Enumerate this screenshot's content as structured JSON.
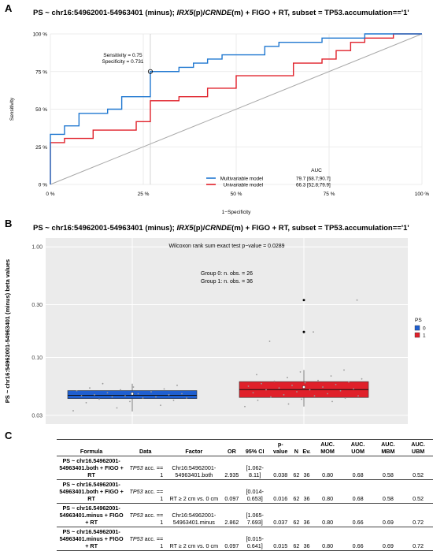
{
  "panels": {
    "a": {
      "letter": "A",
      "title": "PS ~ chr16:54962001-54963401 (minus); IRX5(p)/CRNDE(m) + FIGO + RT, subset = TP53.accumulation=='1'",
      "annotation": [
        "Sensitivity = 0.75",
        "Specificity = 0.731"
      ],
      "legend_header": "AUC"
    },
    "b": {
      "letter": "B",
      "title": "PS ~ chr16:54962001-54963401 (minus); IRX5(p)/CRNDE(m) + FIGO + RT, subset = TP53.accumulation=='1'",
      "annotations": [
        "Wilcoxon rank sum exact test p−value = 0.0289",
        "Group 0: n. obs. = 26",
        "Group 1: n. obs. = 36"
      ]
    },
    "c": {
      "letter": "C"
    }
  },
  "chart_data": [
    {
      "type": "line",
      "xlabel": "1−Specificity",
      "ylabel": "Sensitivity",
      "xlim": [
        0,
        1
      ],
      "ylim": [
        0,
        1
      ],
      "x_ticks": [
        "0 %",
        "25 %",
        "50 %",
        "75 %",
        "100 %"
      ],
      "y_ticks": [
        "0 %",
        "25 %",
        "50 %",
        "75 %",
        "100 %"
      ],
      "grid": true,
      "legend_position": "bottom-right",
      "series": [
        {
          "name": "Multivariable model",
          "auc": "79.7 [68.7;90.7]",
          "color": "#1f77d0",
          "x": [
            0,
            0,
            0.038,
            0.038,
            0.077,
            0.077,
            0.154,
            0.154,
            0.192,
            0.192,
            0.231,
            0.231,
            0.269,
            0.269,
            0.346,
            0.346,
            0.385,
            0.385,
            0.423,
            0.423,
            0.462,
            0.462,
            0.5,
            0.5,
            0.577,
            0.577,
            0.615,
            0.615,
            0.731,
            0.731,
            0.846,
            0.846,
            1
          ],
          "y": [
            0,
            0.333,
            0.333,
            0.389,
            0.389,
            0.472,
            0.472,
            0.5,
            0.5,
            0.583,
            0.583,
            0.583,
            0.583,
            0.75,
            0.75,
            0.778,
            0.778,
            0.806,
            0.806,
            0.833,
            0.833,
            0.861,
            0.861,
            0.861,
            0.861,
            0.917,
            0.917,
            0.944,
            0.944,
            0.972,
            0.972,
            1,
            1
          ]
        },
        {
          "name": "Univariable model",
          "auc": "66.3 [52.8;79.9]",
          "color": "#e0202a",
          "x": [
            0,
            0,
            0.038,
            0.038,
            0.115,
            0.115,
            0.231,
            0.231,
            0.269,
            0.269,
            0.346,
            0.346,
            0.423,
            0.423,
            0.5,
            0.5,
            0.577,
            0.577,
            0.654,
            0.654,
            0.731,
            0.731,
            0.769,
            0.769,
            0.808,
            0.808,
            0.846,
            0.846,
            0.923,
            0.923,
            1
          ],
          "y": [
            0,
            0.278,
            0.278,
            0.306,
            0.306,
            0.361,
            0.361,
            0.417,
            0.417,
            0.556,
            0.556,
            0.583,
            0.583,
            0.639,
            0.639,
            0.722,
            0.722,
            0.722,
            0.722,
            0.806,
            0.806,
            0.833,
            0.833,
            0.889,
            0.889,
            0.944,
            0.944,
            0.972,
            0.972,
            1,
            1
          ]
        }
      ],
      "reference_line": [
        [
          0,
          0
        ],
        [
          1,
          1
        ]
      ],
      "marked_point": {
        "specificity": 0.731,
        "sensitivity": 0.75
      }
    },
    {
      "type": "boxplot",
      "ylabel": "PS ~ chr16:54962001-54963401 (minus) beta values",
      "y_scale": "log",
      "ylim": [
        0.025,
        1.2
      ],
      "y_ticks": [
        1.0,
        0.3,
        0.1,
        0.03
      ],
      "y_tick_labels": [
        "1.00",
        "0.30",
        "0.10",
        "0.03"
      ],
      "grid": true,
      "legend_title": "PS",
      "legend_position": "right",
      "groups": [
        {
          "name": "0",
          "color": "#1f5fd0",
          "q1": 0.0425,
          "median": 0.0455,
          "q3": 0.0502,
          "whisker_low": 0.0325,
          "whisker_high": 0.058,
          "mean": 0.047,
          "points": [
            0.033,
            0.035,
            0.037,
            0.039,
            0.04,
            0.041,
            0.042,
            0.043,
            0.043,
            0.044,
            0.044,
            0.045,
            0.045,
            0.046,
            0.046,
            0.047,
            0.047,
            0.048,
            0.049,
            0.05,
            0.051,
            0.052,
            0.053,
            0.054,
            0.056,
            0.058
          ]
        },
        {
          "name": "1",
          "color": "#e0202a",
          "q1": 0.0435,
          "median": 0.0512,
          "q3": 0.0605,
          "whisker_low": 0.036,
          "whisker_high": 0.077,
          "mean": 0.054,
          "outliers": [
            0.17,
            0.33
          ],
          "points": [
            0.036,
            0.038,
            0.04,
            0.041,
            0.042,
            0.043,
            0.044,
            0.045,
            0.045,
            0.046,
            0.047,
            0.048,
            0.049,
            0.05,
            0.051,
            0.051,
            0.052,
            0.053,
            0.054,
            0.055,
            0.056,
            0.057,
            0.058,
            0.059,
            0.06,
            0.061,
            0.062,
            0.064,
            0.066,
            0.068,
            0.07,
            0.074,
            0.077,
            0.14,
            0.17,
            0.33
          ]
        }
      ]
    },
    {
      "type": "table",
      "columns": [
        "Formula",
        "Data",
        "Factor",
        "OR",
        "95% CI",
        "p-value",
        "N",
        "Ev.",
        "AUC. MOM",
        "AUC. UOM",
        "AUC. MBM",
        "AUC. UBM"
      ],
      "rows": [
        [
          "PS ~ chr16.54962001-54963401.both + FIGO + RT",
          "TP53 acc. == 1",
          "Chr16:54962001-54963401.both",
          "2.935",
          "[1.062-8.11]",
          "0.038",
          "62",
          "36",
          "0.80",
          "0.68",
          "0.58",
          "0.52"
        ],
        [
          "PS ~ chr16.54962001-54963401.both + FIGO + RT",
          "TP53 acc. == 1",
          "RT ≥ 2 cm vs. 0 cm",
          "0.097",
          "[0.014-0.653]",
          "0.016",
          "62",
          "36",
          "0.80",
          "0.68",
          "0.58",
          "0.52"
        ],
        [
          "PS ~ chr16.54962001-54963401.minus + FIGO + RT",
          "TP53 acc. == 1",
          "Chr16:54962001-54963401.minus",
          "2.862",
          "[1.065-7.693]",
          "0.037",
          "62",
          "36",
          "0.80",
          "0.66",
          "0.69",
          "0.72"
        ],
        [
          "PS ~ chr16.54962001-54963401.minus + FIGO + RT",
          "TP53 acc. == 1",
          "RT ≥ 2 cm vs. 0 cm",
          "0.097",
          "[0.015-0.641]",
          "0.015",
          "62",
          "36",
          "0.80",
          "0.66",
          "0.69",
          "0.72"
        ]
      ]
    }
  ]
}
